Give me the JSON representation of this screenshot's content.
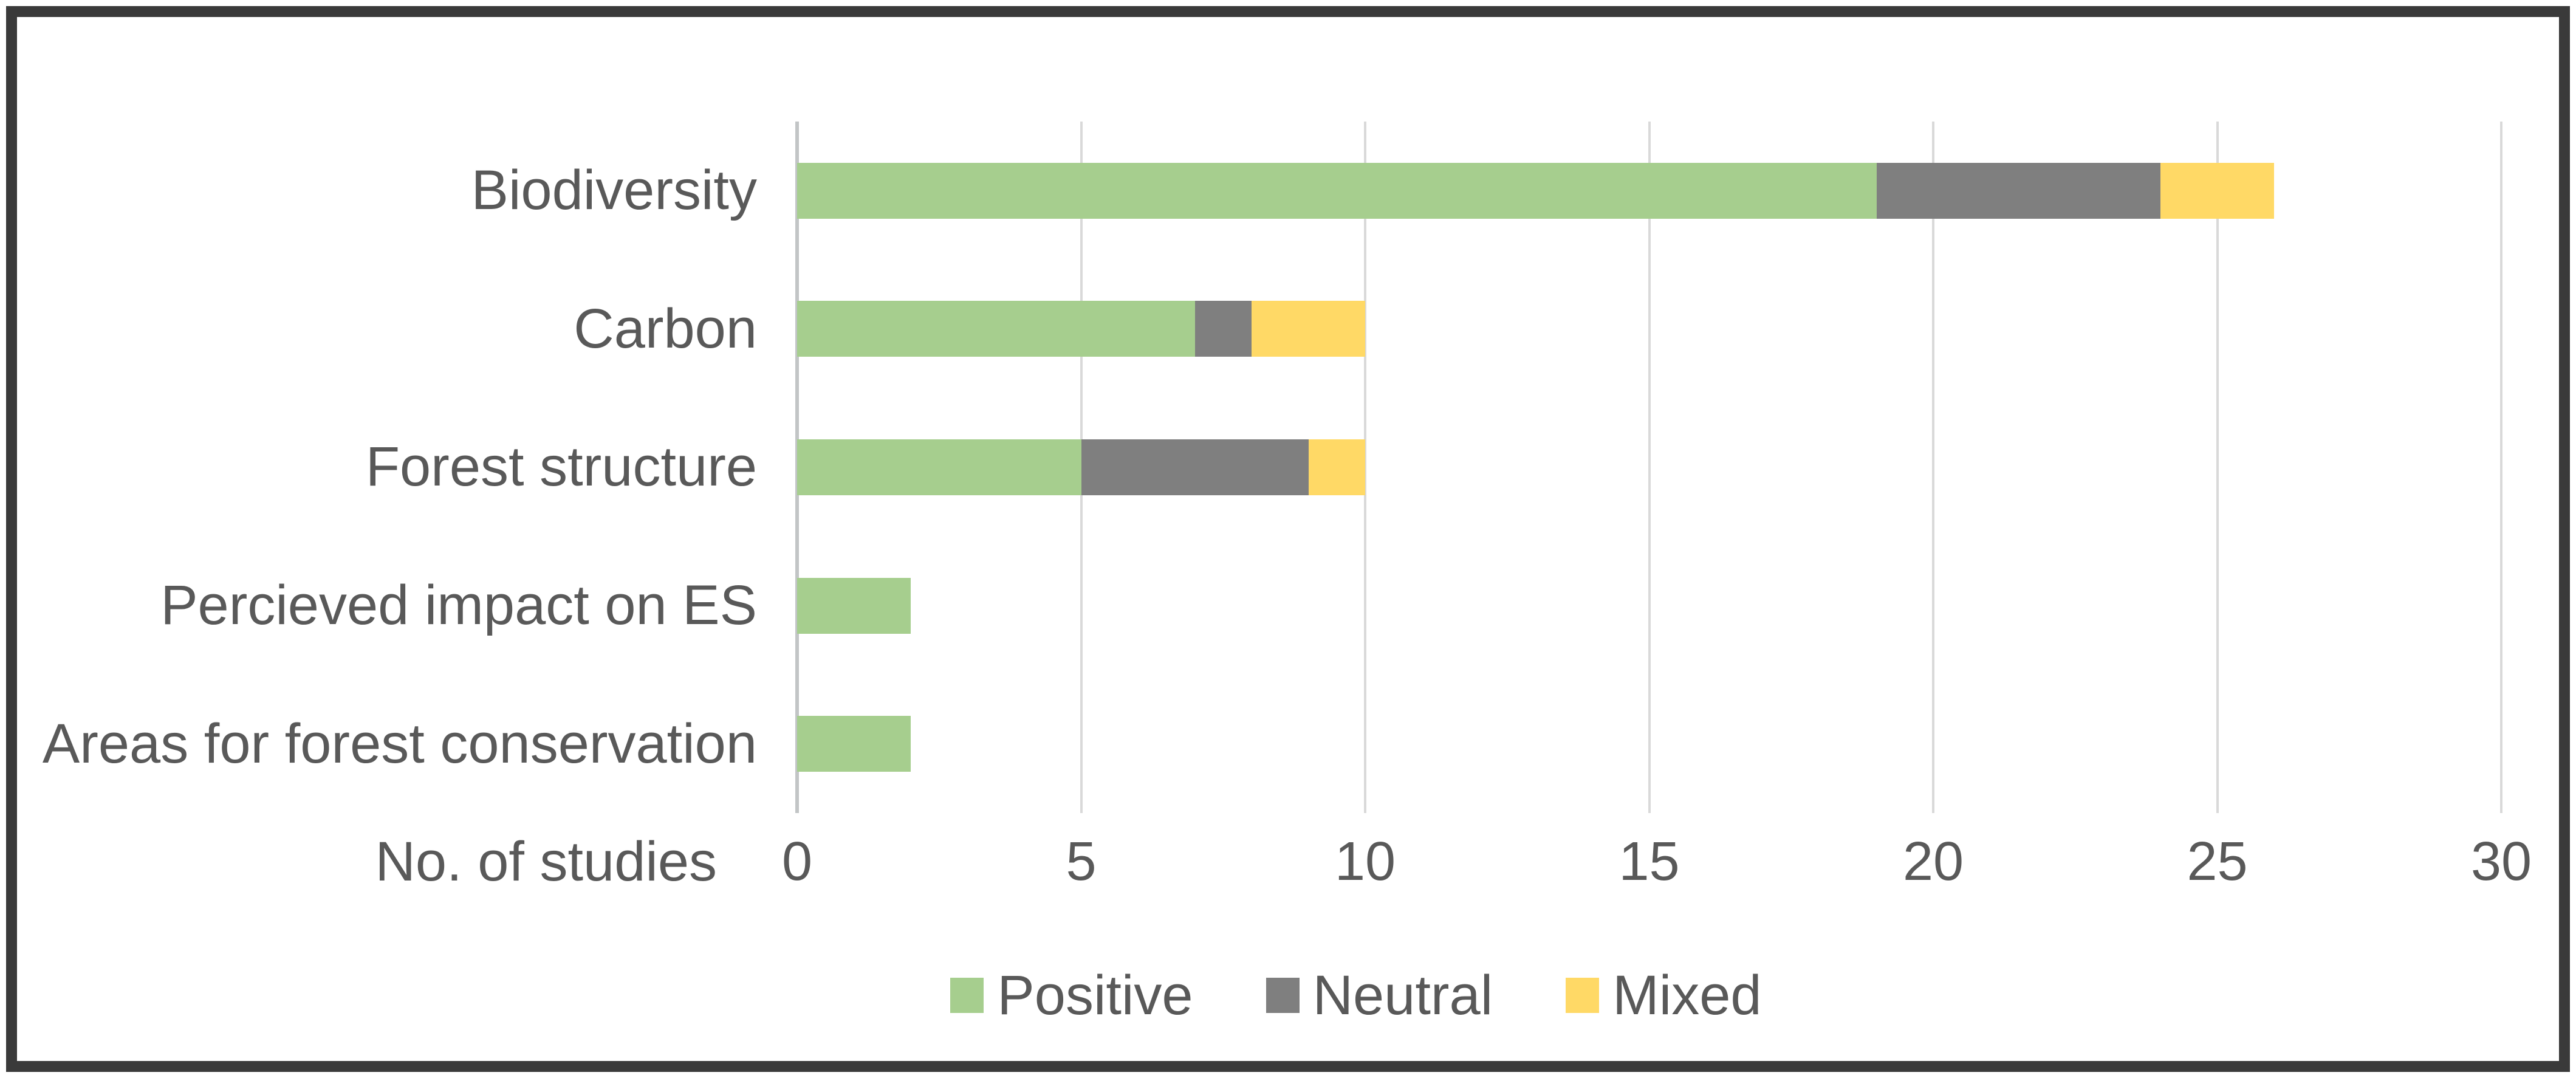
{
  "chart_data": {
    "type": "bar",
    "orientation": "horizontal",
    "stacked": true,
    "categories": [
      "Biodiversity",
      "Carbon",
      "Forest structure",
      "Percieved impact on ES",
      "Areas for forest conservation"
    ],
    "series": [
      {
        "name": "Positive",
        "color": "#A6CE8E",
        "values": [
          19,
          7,
          5,
          2,
          2
        ]
      },
      {
        "name": "Neutral",
        "color": "#7F7F7F",
        "values": [
          5,
          1,
          4,
          0,
          0
        ]
      },
      {
        "name": "Mixed",
        "color": "#FFD966",
        "values": [
          2,
          2,
          1,
          0,
          0
        ]
      }
    ],
    "xlabel": "No. of studies",
    "xlim": [
      0,
      30
    ],
    "xticks": [
      0,
      5,
      10,
      15,
      20,
      25,
      30
    ],
    "grid": true,
    "legend_position": "bottom",
    "legend_entries": [
      "Positive",
      "Neutral",
      "Mixed"
    ]
  },
  "style": {
    "background": "#FFFFFF",
    "frame_border_color": "#3A3A3A",
    "text_color": "#595959",
    "gridline_color": "#D9D9D9",
    "axis_line_color": "#C2C5C6"
  }
}
